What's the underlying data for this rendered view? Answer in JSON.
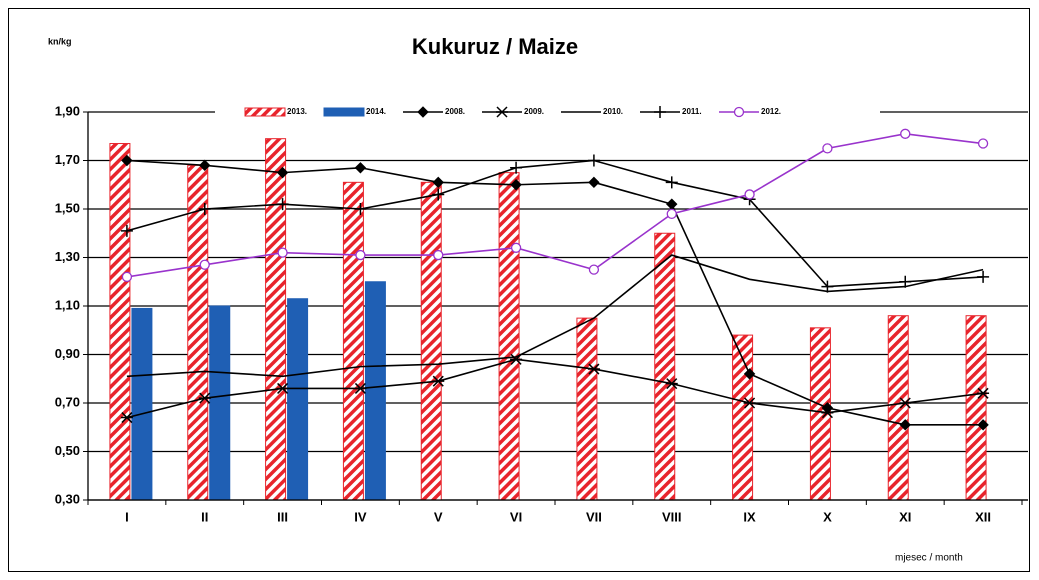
{
  "chart_data": {
    "type": "bar",
    "title": "Kukuruz / Maize",
    "y_label": "kn/kg",
    "x_label": "mjesec / month",
    "categories": [
      "I",
      "II",
      "III",
      "IV",
      "V",
      "VI",
      "VII",
      "VIII",
      "IX",
      "X",
      "XI",
      "XII"
    ],
    "ylim": [
      0.3,
      1.9
    ],
    "yticks": [
      {
        "value": 0.3,
        "label": "0,30"
      },
      {
        "value": 0.5,
        "label": "0,50"
      },
      {
        "value": 0.7,
        "label": "0,70"
      },
      {
        "value": 0.9,
        "label": "0,90"
      },
      {
        "value": 1.1,
        "label": "1,10"
      },
      {
        "value": 1.3,
        "label": "1,30"
      },
      {
        "value": 1.5,
        "label": "1,50"
      },
      {
        "value": 1.7,
        "label": "1,70"
      },
      {
        "value": 1.9,
        "label": "1,90"
      }
    ],
    "grid": true,
    "legend": "top",
    "series": [
      {
        "name": "2013.",
        "kind": "bar",
        "color": "#e8242c",
        "pattern": "hatch",
        "values": [
          1.77,
          1.68,
          1.79,
          1.61,
          1.61,
          1.65,
          1.05,
          1.4,
          0.98,
          1.01,
          1.06,
          1.06
        ]
      },
      {
        "name": "2014.",
        "kind": "bar",
        "color": "#1f5fb4",
        "values": [
          1.09,
          1.1,
          1.13,
          1.2,
          null,
          null,
          null,
          null,
          null,
          null,
          null,
          null
        ]
      },
      {
        "name": "2008.",
        "kind": "line",
        "marker": "diamond",
        "color": "#000000",
        "values": [
          1.7,
          1.68,
          1.65,
          1.67,
          1.61,
          1.6,
          1.61,
          1.52,
          0.82,
          0.68,
          0.61,
          0.61
        ]
      },
      {
        "name": "2009.",
        "kind": "line",
        "marker": "star",
        "color": "#000000",
        "values": [
          0.64,
          0.72,
          0.76,
          0.76,
          0.79,
          0.88,
          0.84,
          0.78,
          0.7,
          0.66,
          0.7,
          0.74
        ]
      },
      {
        "name": "2010.",
        "kind": "line",
        "marker": "none",
        "color": "#000000",
        "values": [
          0.81,
          0.83,
          0.81,
          0.85,
          0.86,
          0.89,
          1.05,
          1.31,
          1.21,
          1.16,
          1.18,
          1.25
        ]
      },
      {
        "name": "2011.",
        "kind": "line",
        "marker": "plus",
        "color": "#000000",
        "values": [
          1.41,
          1.5,
          1.52,
          1.5,
          1.56,
          1.67,
          1.7,
          1.61,
          1.54,
          1.18,
          1.2,
          1.22
        ]
      },
      {
        "name": "2012.",
        "kind": "line",
        "marker": "circle",
        "color": "#9933cc",
        "values": [
          1.22,
          1.27,
          1.32,
          1.31,
          1.31,
          1.34,
          1.25,
          1.48,
          1.56,
          1.75,
          1.81,
          1.77
        ]
      }
    ]
  }
}
